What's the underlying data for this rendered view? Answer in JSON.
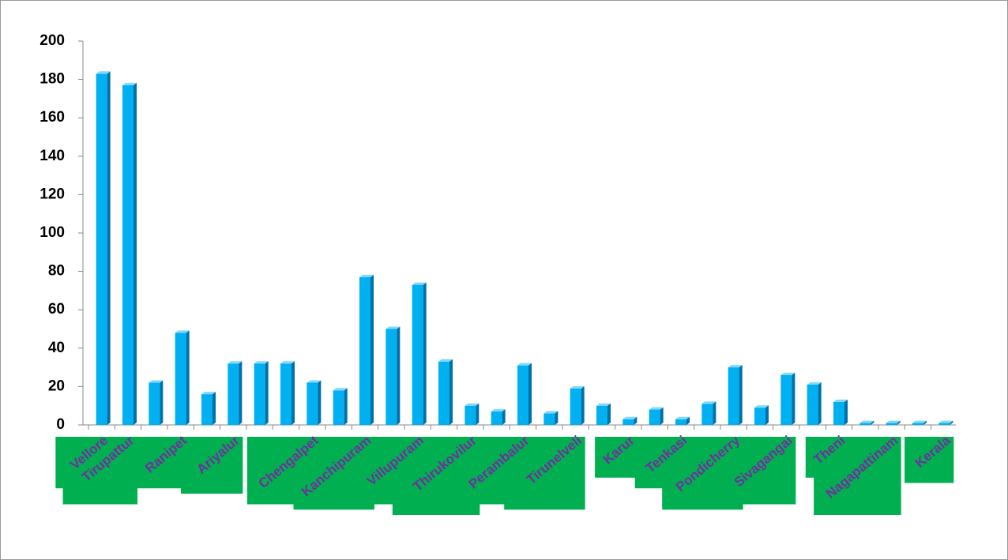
{
  "chart_data": {
    "type": "bar",
    "categories": [
      "Vellore",
      "Tirupattur",
      null,
      "Ranipet",
      null,
      "Ariyalur",
      null,
      null,
      "Chengalpet",
      null,
      "Kanchipuram",
      null,
      "Villupuram",
      null,
      "Thirukovilur",
      null,
      "Perambalur",
      null,
      "Tirunelveli",
      null,
      "Karur",
      null,
      "Tenkasi",
      null,
      "Pondicherry",
      null,
      "Sivagangai",
      null,
      "Theni",
      null,
      "Nagapattinam",
      null,
      "Kerala"
    ],
    "values": [
      183,
      177,
      22,
      48,
      16,
      32,
      32,
      32,
      22,
      18,
      77,
      50,
      73,
      33,
      10,
      7,
      31,
      6,
      19,
      10,
      3,
      8,
      3,
      11,
      30,
      9,
      26,
      21,
      12,
      1,
      1,
      1,
      1
    ],
    "color": "#00b0f0",
    "label_background": "#00b050",
    "ylim": [
      0,
      200
    ],
    "yticks": [
      0,
      20,
      40,
      60,
      80,
      100,
      120,
      140,
      160,
      180,
      200
    ]
  }
}
